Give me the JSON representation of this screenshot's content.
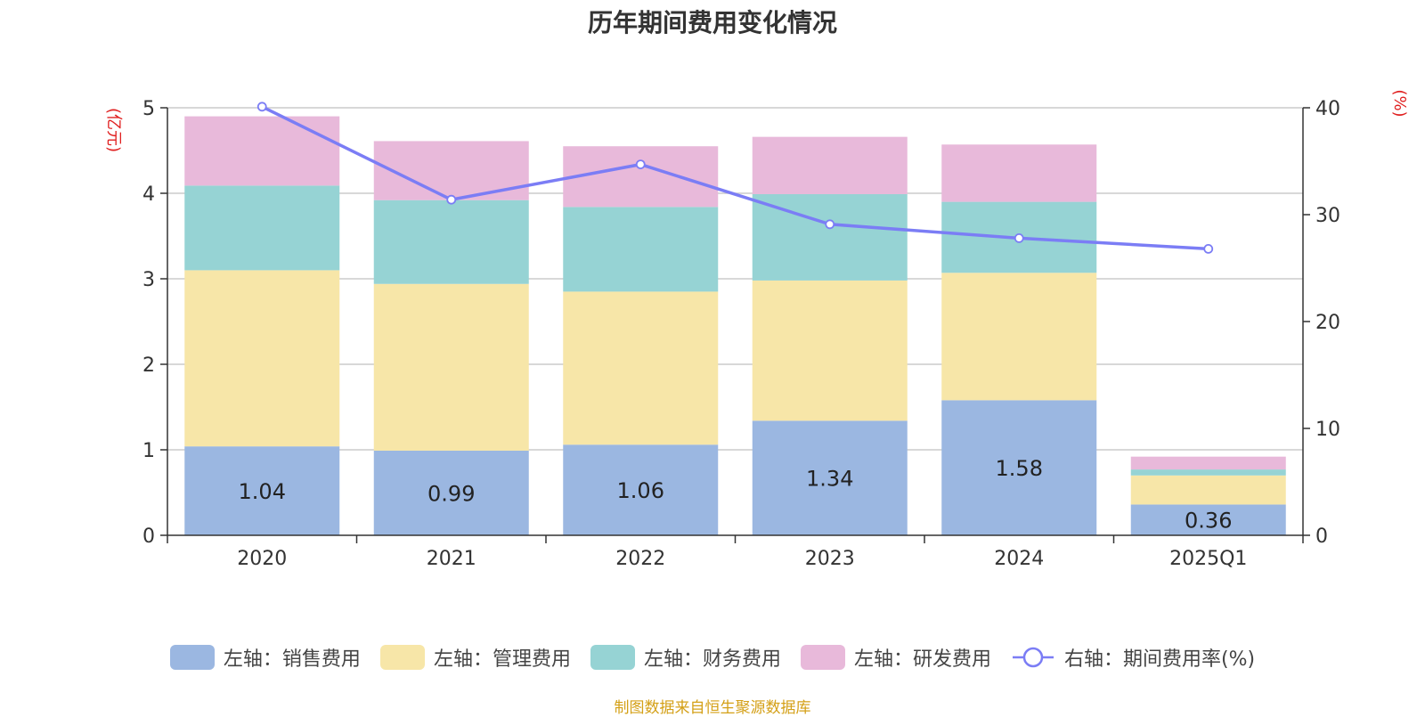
{
  "chart_data": {
    "type": "bar",
    "stacked": true,
    "title": "历年期间费用变化情况",
    "categories": [
      "2020",
      "2021",
      "2022",
      "2023",
      "2024",
      "2025Q1"
    ],
    "left_axis": {
      "label": "(亿元)",
      "ylim": [
        0,
        5
      ],
      "ticks": [
        "0",
        "1",
        "2",
        "3",
        "4",
        "5"
      ]
    },
    "right_axis": {
      "label": "(%)",
      "ylim": [
        0,
        40
      ],
      "ticks": [
        "0",
        "10",
        "20",
        "30",
        "40"
      ]
    },
    "series": [
      {
        "name": "左轴：销售费用",
        "color": "#9bb7e1",
        "axis": "left",
        "values": [
          1.04,
          0.99,
          1.06,
          1.34,
          1.58,
          0.36
        ],
        "labels": [
          "1.04",
          "0.99",
          "1.06",
          "1.34",
          "1.58",
          "0.36"
        ]
      },
      {
        "name": "左轴：管理费用",
        "color": "#f7e6a8",
        "axis": "left",
        "values": [
          2.06,
          1.95,
          1.79,
          1.64,
          1.49,
          0.34
        ]
      },
      {
        "name": "左轴：财务费用",
        "color": "#96d3d4",
        "axis": "left",
        "values": [
          0.99,
          0.98,
          0.99,
          1.01,
          0.83,
          0.07
        ]
      },
      {
        "name": "左轴：研发费用",
        "color": "#e8b9da",
        "axis": "left",
        "values": [
          0.81,
          0.69,
          0.71,
          0.67,
          0.67,
          0.15
        ]
      },
      {
        "name": "右轴：期间费用率(%)",
        "color": "#7b7df5",
        "axis": "right",
        "type": "line",
        "values": [
          40.1,
          31.4,
          34.7,
          29.1,
          27.8,
          26.8
        ]
      }
    ],
    "legend_position": "bottom"
  },
  "source": "制图数据来自恒生聚源数据库"
}
